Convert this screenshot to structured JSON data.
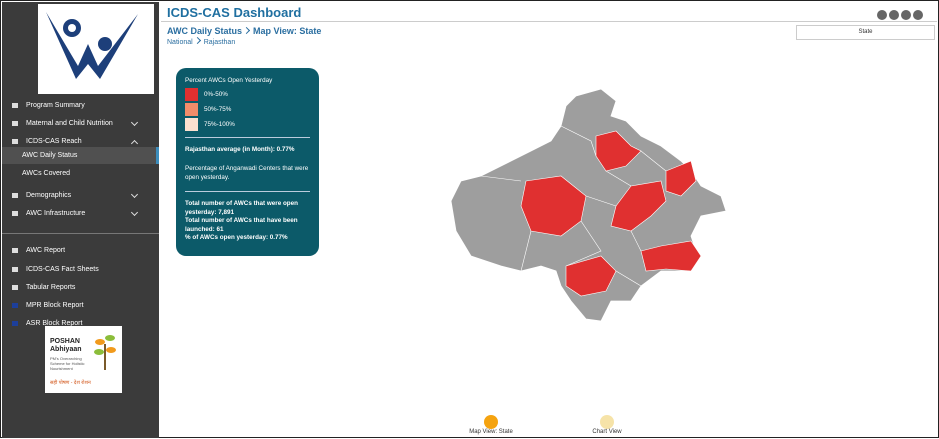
{
  "header": {
    "title": "ICDS-CAS Dashboard",
    "breadcrumb": [
      "AWC Daily Status",
      "Map View: State"
    ],
    "location": [
      "National",
      "Rajasthan"
    ],
    "state_button": "State"
  },
  "sidebar": {
    "menu": [
      "Program Summary",
      "Maternal and Child Nutrition",
      "ICDS-CAS Reach",
      "AWC Daily Status",
      "AWCs Covered",
      "Demographics",
      "AWC Infrastructure"
    ],
    "reports": [
      "AWC Report",
      "ICDS-CAS Fact Sheets",
      "Tabular Reports",
      "MPR Block Report",
      "ASR Block Report"
    ],
    "poshan": {
      "name": "POSHAN",
      "subname": "Abhiyaan",
      "tagline": "PM's Overarching Scheme for Holistic Nourishment",
      "slogan": "सही पोषण - देश रोशन"
    }
  },
  "legend": {
    "title": "Percent AWCs Open Yesterday",
    "ranges": [
      {
        "label": "0%-50%",
        "color": "#e03030"
      },
      {
        "label": "50%-75%",
        "color": "#f28c6a"
      },
      {
        "label": "75%-100%",
        "color": "#fbe0cf"
      }
    ],
    "average": "Rajasthan average (in Month): 0.77%",
    "description": "Percentage of Anganwadi Centers that were open yesterday.",
    "totals": [
      "Total number of AWCs that were open yesterday: 7,891",
      "Total number of AWCs that have been launched: 61",
      "% of AWCs open yesterday: 0.77%"
    ]
  },
  "tabs": [
    "Map View: State",
    "Chart View"
  ]
}
